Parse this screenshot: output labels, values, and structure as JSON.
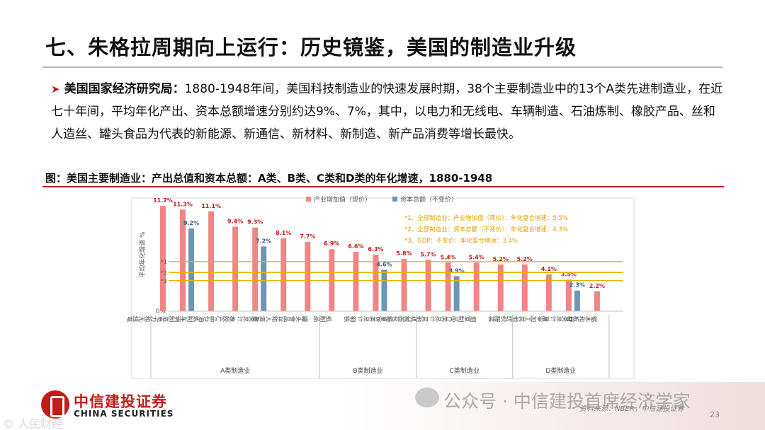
{
  "slide": {
    "title": "七、朱格拉周期向上运行：历史镜鉴，美国的制造业升级",
    "bullet_lead": "美国国家经济研究局：",
    "bullet_text": "1880-1948年间，美国科技制造业的快速发展时期，38个主要制造业中的13个A类先进制造业，在近七十年间，平均年化产出、资本总额增速分别约达9%、7%，其中，以电力和无线电、车辆制造、石油炼制、橡胶产品、丝和人造丝、罐头食品为代表的新能源、新通信、新材料、新制造、新产品消费等增长最快。",
    "figure_title": "图：美国主要制造业：产出总值和资本总额：A类、B类、C类和D类的年化增速，1880-1948",
    "source": "资料来源：NBER，中信建投证券",
    "page_number": "23",
    "watermark": "公众号 · 中信建投首席经济学家",
    "corner_watermark": "© 人民财经",
    "logo_cn": "中信建投证券",
    "logo_en": "CHINA SECURITIES"
  },
  "colors": {
    "accent_red": "#c41a1a",
    "bar_output": "#f08586",
    "bar_capital": "#6e96b4",
    "ref_line": "#e6b400",
    "label_red": "#c41a1a",
    "label_blue": "#2f5d88",
    "note_text": "#e0a000"
  },
  "chart_data": {
    "type": "bar",
    "ylabel": "平均年化增速 %",
    "y_zero_label": "0%",
    "ylim": [
      0,
      12.5
    ],
    "grid": false,
    "legend_position": "top",
    "categories": [
      "电力和无线电",
      "车辆制造",
      "石油炼制",
      "橡胶产品",
      "A类总计",
      "丝和人造丝",
      "罐头食品",
      "纸制品",
      "钢铁",
      "B类总计",
      "面包糖果",
      "其他机械",
      "C类总计",
      "烟草制品",
      "服装",
      "其他纺织",
      "屠宰加工",
      "D类总计",
      "锯木和板材"
    ],
    "groups": [
      {
        "name": "A类制造业",
        "count": 7
      },
      {
        "name": "B类制造业",
        "count": 4
      },
      {
        "name": "C类制造业",
        "count": 4
      },
      {
        "name": "D类制造业",
        "count": 4
      }
    ],
    "series": [
      {
        "name": "产业增加值（现价）",
        "values": [
          11.7,
          11.3,
          11.1,
          9.4,
          9.3,
          8.1,
          7.7,
          6.9,
          6.6,
          6.3,
          5.8,
          5.7,
          5.4,
          5.4,
          5.2,
          5.2,
          4.1,
          3.5,
          2.2
        ],
        "labels": [
          "11.7%",
          "11.3%",
          "11.1%",
          "9.4%",
          "9.3%",
          "8.1%",
          "7.7%",
          "6.9%",
          "6.6%",
          "6.3%",
          "5.8%",
          "5.7%",
          "5.4%",
          "5.4%",
          "5.2%",
          "5.2%",
          "4.1%",
          "3.5%",
          "2.2%"
        ]
      },
      {
        "name": "资本总额（不变价）",
        "values": [
          null,
          9.2,
          null,
          null,
          7.2,
          null,
          null,
          null,
          null,
          4.6,
          null,
          null,
          3.9,
          null,
          null,
          null,
          null,
          2.3,
          null
        ],
        "labels": [
          null,
          "9.2%",
          null,
          null,
          "7.2%",
          null,
          null,
          null,
          null,
          "4.6%",
          null,
          null,
          "3.9%",
          null,
          null,
          null,
          null,
          "2.3%",
          null
        ]
      }
    ],
    "reference_lines": [
      {
        "label": "*1",
        "value": 5.5
      },
      {
        "label": "*2",
        "value": 4.3
      },
      {
        "label": "*3",
        "value": 3.4
      }
    ],
    "notes": [
      "*1、全部制造业：产业增加值（现价）：年化复合增速：5.5%",
      "*2、全部制造业：资本总额（不变价）：年化复合增速：4.3%",
      "*3、GDP：不变价：年化复合增速：3.4%"
    ]
  }
}
